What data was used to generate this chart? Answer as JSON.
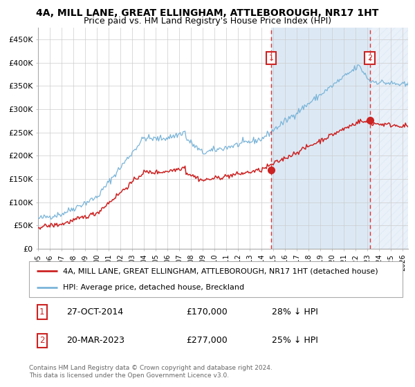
{
  "title": "4A, MILL LANE, GREAT ELLINGHAM, ATTLEBOROUGH, NR17 1HT",
  "subtitle": "Price paid vs. HM Land Registry's House Price Index (HPI)",
  "ylim": [
    0,
    475000
  ],
  "yticks": [
    0,
    50000,
    100000,
    150000,
    200000,
    250000,
    300000,
    350000,
    400000,
    450000
  ],
  "ytick_labels": [
    "£0",
    "£50K",
    "£100K",
    "£150K",
    "£200K",
    "£250K",
    "£300K",
    "£350K",
    "£400K",
    "£450K"
  ],
  "hpi_color": "#7ab4d8",
  "price_color": "#cc2222",
  "marker_color": "#cc2222",
  "sale1_date_num": 2014.82,
  "sale1_price": 170000,
  "sale1_label": "1",
  "sale2_date_num": 2023.22,
  "sale2_price": 277000,
  "sale2_label": "2",
  "vline_color": "#dd3333",
  "shade_color": "#dce9f5",
  "legend_label_price": "4A, MILL LANE, GREAT ELLINGHAM, ATTLEBOROUGH, NR17 1HT (detached house)",
  "legend_label_hpi": "HPI: Average price, detached house, Breckland",
  "note1_date": "27-OCT-2014",
  "note1_price": "£170,000",
  "note1_pct": "28% ↓ HPI",
  "note2_date": "20-MAR-2023",
  "note2_price": "£277,000",
  "note2_pct": "25% ↓ HPI",
  "footer": "Contains HM Land Registry data © Crown copyright and database right 2024.\nThis data is licensed under the Open Government Licence v3.0.",
  "xmin": 1995.0,
  "xmax": 2026.5,
  "xticks": [
    1995,
    1996,
    1997,
    1998,
    1999,
    2000,
    2001,
    2002,
    2003,
    2004,
    2005,
    2006,
    2007,
    2008,
    2009,
    2010,
    2011,
    2012,
    2013,
    2014,
    2015,
    2016,
    2017,
    2018,
    2019,
    2020,
    2021,
    2022,
    2023,
    2024,
    2025,
    2026
  ]
}
